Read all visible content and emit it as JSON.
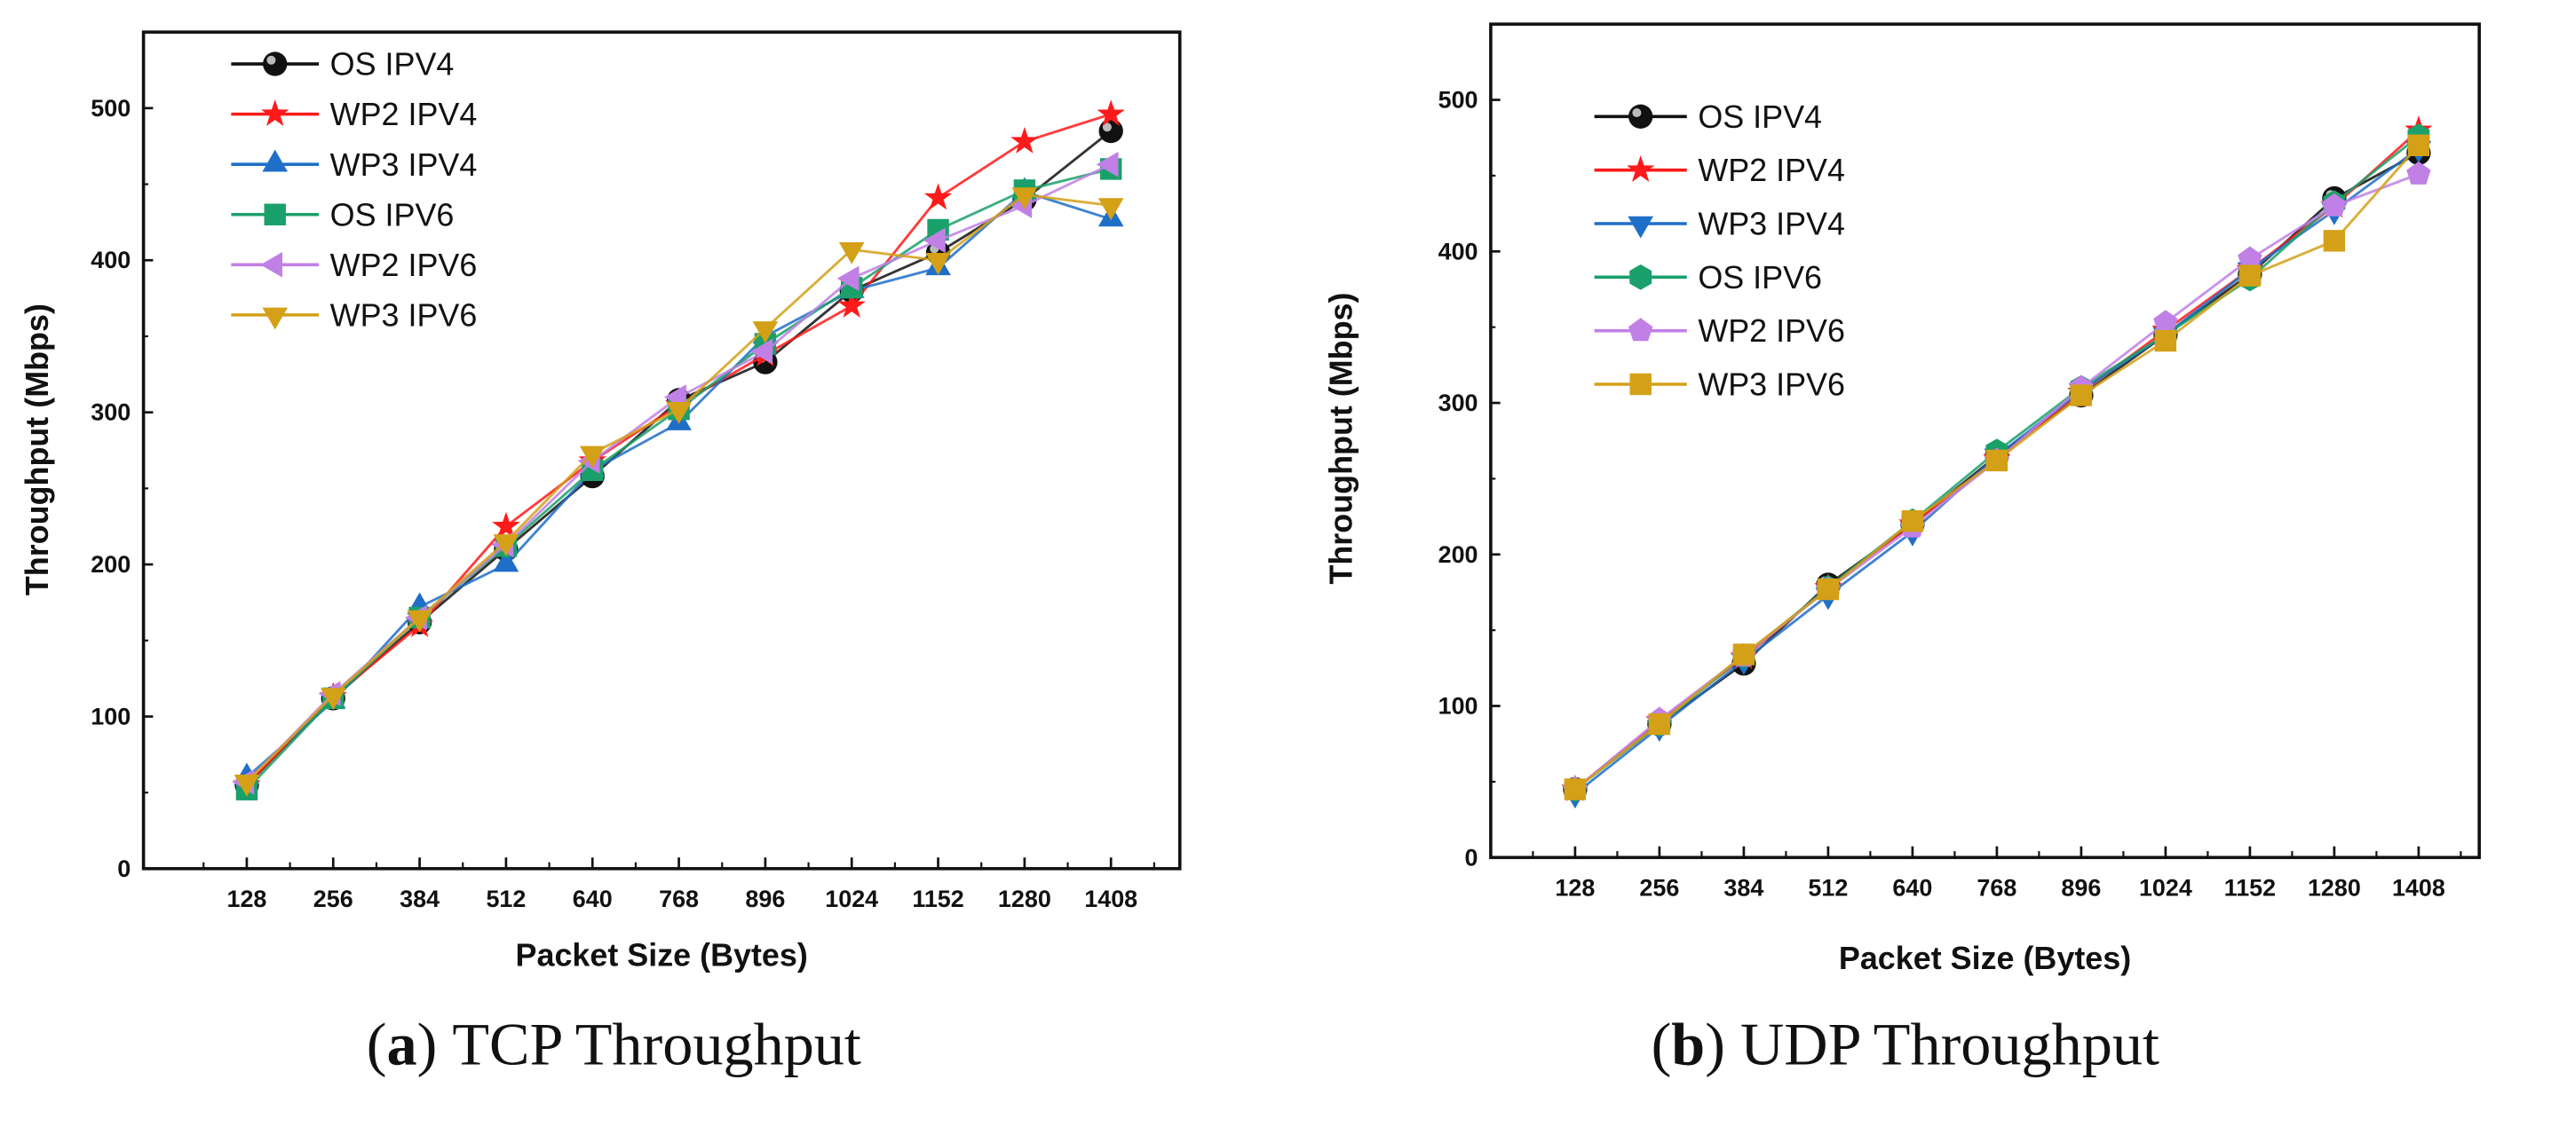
{
  "chart_data": [
    {
      "type": "line",
      "caption_letter": "a",
      "caption_text": "TCP Throughput",
      "xlabel": "Packet Size (Bytes)",
      "ylabel": "Throughput (Mbps)",
      "x": [
        128,
        256,
        384,
        512,
        640,
        768,
        896,
        1024,
        1152,
        1280,
        1408
      ],
      "xlim": [
        -25,
        1510
      ],
      "ylim": [
        0,
        550
      ],
      "yticks": [
        0,
        100,
        200,
        300,
        400,
        500
      ],
      "legend": "top-left",
      "series": [
        {
          "name": "OS IPV4",
          "color": "#111111",
          "marker": "circle",
          "values": [
            55,
            112,
            162,
            210,
            258,
            308,
            333,
            380,
            405,
            440,
            485
          ]
        },
        {
          "name": "WP2 IPV4",
          "color": "#ff1a1a",
          "marker": "star",
          "values": [
            55,
            113,
            160,
            225,
            268,
            305,
            338,
            370,
            441,
            478,
            496
          ]
        },
        {
          "name": "WP3 IPV4",
          "color": "#1f6fc8",
          "marker": "triangle-up",
          "values": [
            60,
            110,
            172,
            200,
            262,
            293,
            350,
            380,
            395,
            445,
            427
          ]
        },
        {
          "name": "OS IPV6",
          "color": "#1aa06a",
          "marker": "square",
          "values": [
            52,
            112,
            165,
            212,
            262,
            302,
            345,
            382,
            420,
            446,
            460
          ]
        },
        {
          "name": "WP2 IPV6",
          "color": "#c080e6",
          "marker": "triangle-left",
          "values": [
            57,
            115,
            165,
            213,
            268,
            310,
            340,
            388,
            413,
            436,
            463
          ]
        },
        {
          "name": "WP3 IPV6",
          "color": "#d4a017",
          "marker": "triangle-down",
          "values": [
            57,
            114,
            165,
            215,
            273,
            302,
            355,
            407,
            400,
            443,
            436
          ]
        }
      ]
    },
    {
      "type": "line",
      "caption_letter": "b",
      "caption_text": "UDP Throughput",
      "xlabel": "Packet Size (Bytes)",
      "ylabel": "Throughput (Mbps)",
      "x": [
        128,
        256,
        384,
        512,
        640,
        768,
        896,
        1024,
        1152,
        1280,
        1408
      ],
      "xlim": [
        0,
        1500
      ],
      "ylim": [
        0,
        550
      ],
      "yticks": [
        0,
        100,
        200,
        300,
        400,
        500
      ],
      "legend": "top-left",
      "series": [
        {
          "name": "OS IPV4",
          "color": "#111111",
          "marker": "circle",
          "values": [
            45,
            88,
            128,
            180,
            220,
            265,
            305,
            345,
            385,
            435,
            465
          ]
        },
        {
          "name": "WP2 IPV4",
          "color": "#ff1a1a",
          "marker": "star",
          "values": [
            45,
            90,
            132,
            178,
            220,
            263,
            307,
            348,
            388,
            430,
            480
          ]
        },
        {
          "name": "WP3 IPV4",
          "color": "#1f6fc8",
          "marker": "triangle-down",
          "values": [
            42,
            86,
            130,
            173,
            215,
            265,
            308,
            345,
            388,
            427,
            468
          ]
        },
        {
          "name": "OS IPV6",
          "color": "#1aa06a",
          "marker": "hexagon",
          "values": [
            45,
            88,
            133,
            178,
            222,
            268,
            310,
            345,
            382,
            432,
            476
          ]
        },
        {
          "name": "WP2 IPV6",
          "color": "#c080e6",
          "marker": "pentagon",
          "values": [
            45,
            91,
            133,
            177,
            218,
            262,
            310,
            353,
            395,
            430,
            451
          ]
        },
        {
          "name": "WP3 IPV6",
          "color": "#d4a017",
          "marker": "square",
          "values": [
            45,
            88,
            134,
            177,
            222,
            262,
            305,
            341,
            384,
            407,
            470
          ]
        }
      ]
    }
  ]
}
